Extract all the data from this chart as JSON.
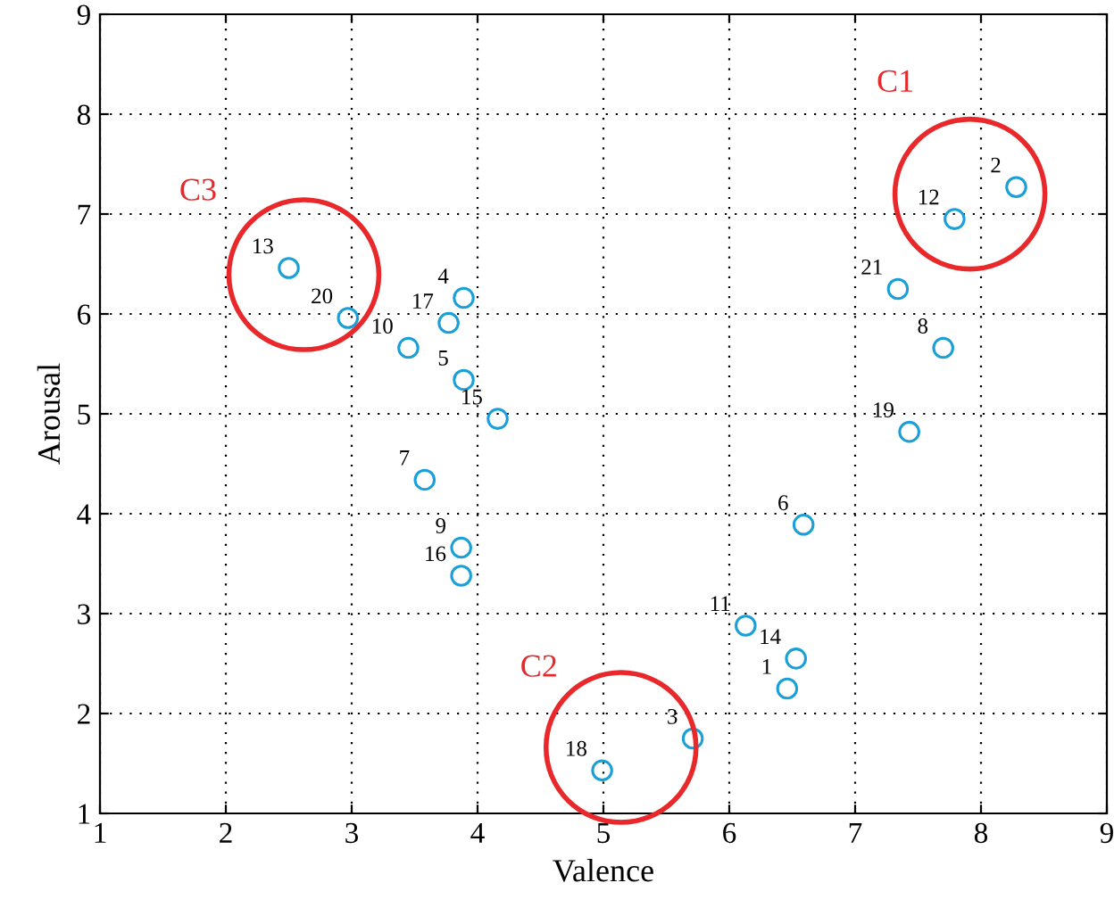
{
  "chart_data": {
    "type": "scatter",
    "xlabel": "Valence",
    "ylabel": "Arousal",
    "x": [
      6.46,
      8.28,
      5.71,
      3.89,
      3.89,
      6.59,
      3.58,
      7.7,
      3.87,
      3.45,
      6.13,
      7.79,
      2.5,
      6.53,
      4.16,
      3.87,
      3.77,
      4.99,
      7.43,
      2.97,
      7.34
    ],
    "values": [
      2.25,
      7.27,
      1.75,
      6.16,
      5.34,
      3.89,
      4.34,
      5.66,
      3.66,
      5.66,
      2.88,
      6.95,
      6.46,
      2.55,
      4.95,
      3.38,
      5.91,
      1.43,
      4.82,
      5.96,
      6.25
    ],
    "color": "#1a9fd6",
    "marker": "circle",
    "xlim": [
      1,
      9
    ],
    "ylim": [
      1,
      9
    ],
    "xticks": [
      1,
      2,
      3,
      4,
      5,
      6,
      7,
      8,
      9
    ],
    "yticks": [
      1,
      2,
      3,
      4,
      5,
      6,
      7,
      8,
      9
    ],
    "grid": true,
    "annotations": [
      {
        "text": "1",
        "x": 6.46,
        "y": 2.25
      },
      {
        "text": "2",
        "x": 8.28,
        "y": 7.27
      },
      {
        "text": "3",
        "x": 5.71,
        "y": 1.75
      },
      {
        "text": "4",
        "x": 3.89,
        "y": 6.16
      },
      {
        "text": "5",
        "x": 3.89,
        "y": 5.34
      },
      {
        "text": "6",
        "x": 6.59,
        "y": 3.89
      },
      {
        "text": "7",
        "x": 3.58,
        "y": 4.34
      },
      {
        "text": "8",
        "x": 7.7,
        "y": 5.66
      },
      {
        "text": "9",
        "x": 3.87,
        "y": 3.66
      },
      {
        "text": "10",
        "x": 3.45,
        "y": 5.66
      },
      {
        "text": "11",
        "x": 6.13,
        "y": 2.88
      },
      {
        "text": "12",
        "x": 7.79,
        "y": 6.95
      },
      {
        "text": "13",
        "x": 2.5,
        "y": 6.46
      },
      {
        "text": "14",
        "x": 6.53,
        "y": 2.55
      },
      {
        "text": "15",
        "x": 4.16,
        "y": 4.95
      },
      {
        "text": "16",
        "x": 3.87,
        "y": 3.38
      },
      {
        "text": "17",
        "x": 3.77,
        "y": 5.91
      },
      {
        "text": "18",
        "x": 4.99,
        "y": 1.43
      },
      {
        "text": "19",
        "x": 7.43,
        "y": 4.82
      },
      {
        "text": "20",
        "x": 2.97,
        "y": 5.96
      },
      {
        "text": "21",
        "x": 7.34,
        "y": 6.25
      },
      "C1",
      "C2",
      "C3"
    ]
  }
}
